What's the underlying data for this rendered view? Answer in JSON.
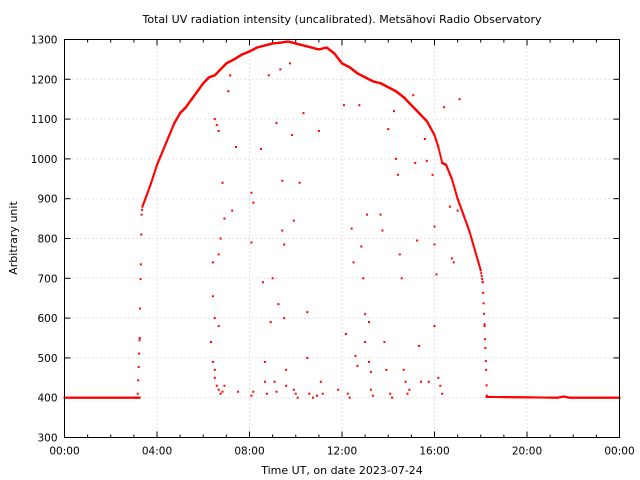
{
  "chart_data": {
    "type": "scatter",
    "title": "Total UV radiation intensity (uncalibrated). Metsähovi Radio Observatory",
    "xlabel": "Time UT, on date 2023-07-24",
    "ylabel": "Arbitrary unit",
    "xlim": [
      "00:00",
      "24:00"
    ],
    "ylim": [
      300,
      1300
    ],
    "x_ticks": [
      "00:00",
      "04:00",
      "08:00",
      "12:00",
      "16:00",
      "20:00",
      "00:00"
    ],
    "y_ticks": [
      300,
      400,
      500,
      600,
      700,
      800,
      900,
      1000,
      1100,
      1200,
      1300
    ],
    "grid": true,
    "marker_color": "#ff0000",
    "series": [
      {
        "baseline_night": {
          "points": [
            [
              "00:00",
              400
            ],
            [
              "03:15",
              400
            ],
            [
              "18:15",
              402
            ],
            [
              "21:20",
              400
            ],
            [
              "21:35",
              403
            ],
            [
              "21:50",
              400
            ],
            [
              "24:00",
              400
            ]
          ]
        },
        "upper_envelope": {
          "points": [
            [
              "03:10",
              410
            ],
            [
              "03:15",
              550
            ],
            [
              "03:18",
              735
            ],
            [
              "03:20",
              860
            ],
            [
              "03:22",
              880
            ],
            [
              "03:30",
              900
            ],
            [
              "03:45",
              940
            ],
            [
              "04:00",
              985
            ],
            [
              "04:15",
              1020
            ],
            [
              "04:30",
              1055
            ],
            [
              "04:45",
              1090
            ],
            [
              "05:00",
              1115
            ],
            [
              "05:15",
              1130
            ],
            [
              "05:30",
              1150
            ],
            [
              "05:45",
              1170
            ],
            [
              "06:00",
              1190
            ],
            [
              "06:15",
              1205
            ],
            [
              "06:30",
              1210
            ],
            [
              "06:45",
              1225
            ],
            [
              "07:00",
              1240
            ],
            [
              "07:20",
              1250
            ],
            [
              "07:40",
              1262
            ],
            [
              "08:00",
              1270
            ],
            [
              "08:20",
              1280
            ],
            [
              "08:40",
              1285
            ],
            [
              "09:00",
              1290
            ],
            [
              "09:20",
              1292
            ],
            [
              "09:40",
              1295
            ],
            [
              "10:00",
              1290
            ],
            [
              "10:20",
              1285
            ],
            [
              "10:40",
              1280
            ],
            [
              "11:00",
              1275
            ],
            [
              "11:20",
              1280
            ],
            [
              "11:40",
              1265
            ],
            [
              "12:00",
              1240
            ],
            [
              "12:20",
              1230
            ],
            [
              "12:40",
              1215
            ],
            [
              "13:00",
              1205
            ],
            [
              "13:20",
              1195
            ],
            [
              "13:40",
              1190
            ],
            [
              "14:00",
              1180
            ],
            [
              "14:20",
              1170
            ],
            [
              "14:40",
              1155
            ],
            [
              "15:00",
              1135
            ],
            [
              "15:20",
              1115
            ],
            [
              "15:40",
              1095
            ],
            [
              "16:00",
              1060
            ],
            [
              "16:10",
              1030
            ],
            [
              "16:20",
              990
            ],
            [
              "16:30",
              985
            ],
            [
              "16:45",
              950
            ],
            [
              "17:00",
              900
            ],
            [
              "17:15",
              860
            ],
            [
              "17:30",
              820
            ],
            [
              "17:45",
              770
            ],
            [
              "18:00",
              720
            ],
            [
              "18:05",
              690
            ],
            [
              "18:10",
              580
            ],
            [
              "18:12",
              525
            ],
            [
              "18:14",
              470
            ],
            [
              "18:16",
              405
            ]
          ]
        },
        "scattered_points": {
          "points": [
            [
              "06:30",
              1100
            ],
            [
              "06:35",
              1085
            ],
            [
              "06:40",
              1070
            ],
            [
              "06:50",
              940
            ],
            [
              "06:55",
              850
            ],
            [
              "06:45",
              800
            ],
            [
              "06:40",
              760
            ],
            [
              "06:25",
              740
            ],
            [
              "06:25",
              655
            ],
            [
              "06:30",
              600
            ],
            [
              "06:40",
              580
            ],
            [
              "06:20",
              540
            ],
            [
              "06:25",
              490
            ],
            [
              "06:30",
              470
            ],
            [
              "06:30",
              450
            ],
            [
              "06:35",
              430
            ],
            [
              "06:40",
              420
            ],
            [
              "06:45",
              410
            ],
            [
              "06:50",
              415
            ],
            [
              "06:55",
              430
            ],
            [
              "07:05",
              1170
            ],
            [
              "07:10",
              1210
            ],
            [
              "07:15",
              870
            ],
            [
              "07:25",
              1030
            ],
            [
              "07:30",
              415
            ],
            [
              "08:05",
              915
            ],
            [
              "08:10",
              890
            ],
            [
              "08:05",
              790
            ],
            [
              "08:05",
              405
            ],
            [
              "08:10",
              415
            ],
            [
              "08:30",
              1025
            ],
            [
              "08:35",
              690
            ],
            [
              "08:40",
              490
            ],
            [
              "08:40",
              440
            ],
            [
              "08:45",
              410
            ],
            [
              "08:50",
              1210
            ],
            [
              "08:55",
              590
            ],
            [
              "09:00",
              700
            ],
            [
              "09:05",
              440
            ],
            [
              "09:10",
              415
            ],
            [
              "09:10",
              1090
            ],
            [
              "09:15",
              635
            ],
            [
              "09:20",
              1225
            ],
            [
              "09:25",
              945
            ],
            [
              "09:25",
              820
            ],
            [
              "09:30",
              785
            ],
            [
              "09:30",
              600
            ],
            [
              "09:35",
              470
            ],
            [
              "09:35",
              430
            ],
            [
              "09:45",
              1240
            ],
            [
              "09:50",
              1060
            ],
            [
              "09:55",
              845
            ],
            [
              "09:55",
              420
            ],
            [
              "10:00",
              410
            ],
            [
              "10:05",
              400
            ],
            [
              "10:10",
              940
            ],
            [
              "10:20",
              1115
            ],
            [
              "10:30",
              615
            ],
            [
              "10:30",
              500
            ],
            [
              "10:35",
              410
            ],
            [
              "10:45",
              400
            ],
            [
              "10:55",
              405
            ],
            [
              "11:00",
              1070
            ],
            [
              "11:05",
              440
            ],
            [
              "11:10",
              410
            ],
            [
              "11:50",
              420
            ],
            [
              "12:05",
              1135
            ],
            [
              "12:10",
              560
            ],
            [
              "12:15",
              410
            ],
            [
              "12:20",
              400
            ],
            [
              "12:25",
              825
            ],
            [
              "12:30",
              740
            ],
            [
              "12:35",
              505
            ],
            [
              "12:40",
              480
            ],
            [
              "12:45",
              1135
            ],
            [
              "12:50",
              780
            ],
            [
              "12:55",
              700
            ],
            [
              "13:00",
              610
            ],
            [
              "13:00",
              540
            ],
            [
              "13:05",
              860
            ],
            [
              "13:10",
              590
            ],
            [
              "13:10",
              490
            ],
            [
              "13:15",
              465
            ],
            [
              "13:15",
              420
            ],
            [
              "13:20",
              405
            ],
            [
              "13:40",
              860
            ],
            [
              "13:45",
              820
            ],
            [
              "13:50",
              540
            ],
            [
              "13:55",
              470
            ],
            [
              "14:00",
              1075
            ],
            [
              "14:05",
              410
            ],
            [
              "14:10",
              400
            ],
            [
              "14:15",
              1120
            ],
            [
              "14:20",
              1000
            ],
            [
              "14:25",
              960
            ],
            [
              "14:30",
              760
            ],
            [
              "14:35",
              700
            ],
            [
              "14:40",
              470
            ],
            [
              "14:45",
              440
            ],
            [
              "14:50",
              410
            ],
            [
              "14:55",
              420
            ],
            [
              "15:05",
              1160
            ],
            [
              "15:10",
              990
            ],
            [
              "15:15",
              795
            ],
            [
              "15:20",
              530
            ],
            [
              "15:25",
              440
            ],
            [
              "15:35",
              1050
            ],
            [
              "15:40",
              995
            ],
            [
              "15:45",
              440
            ],
            [
              "15:55",
              960
            ],
            [
              "16:00",
              830
            ],
            [
              "16:00",
              785
            ],
            [
              "16:00",
              580
            ],
            [
              "16:05",
              710
            ],
            [
              "16:10",
              450
            ],
            [
              "16:15",
              430
            ],
            [
              "16:20",
              410
            ],
            [
              "16:25",
              1130
            ],
            [
              "16:40",
              880
            ],
            [
              "16:45",
              750
            ],
            [
              "16:50",
              740
            ],
            [
              "17:00",
              870
            ],
            [
              "17:05",
              1150
            ]
          ]
        }
      }
    ]
  }
}
